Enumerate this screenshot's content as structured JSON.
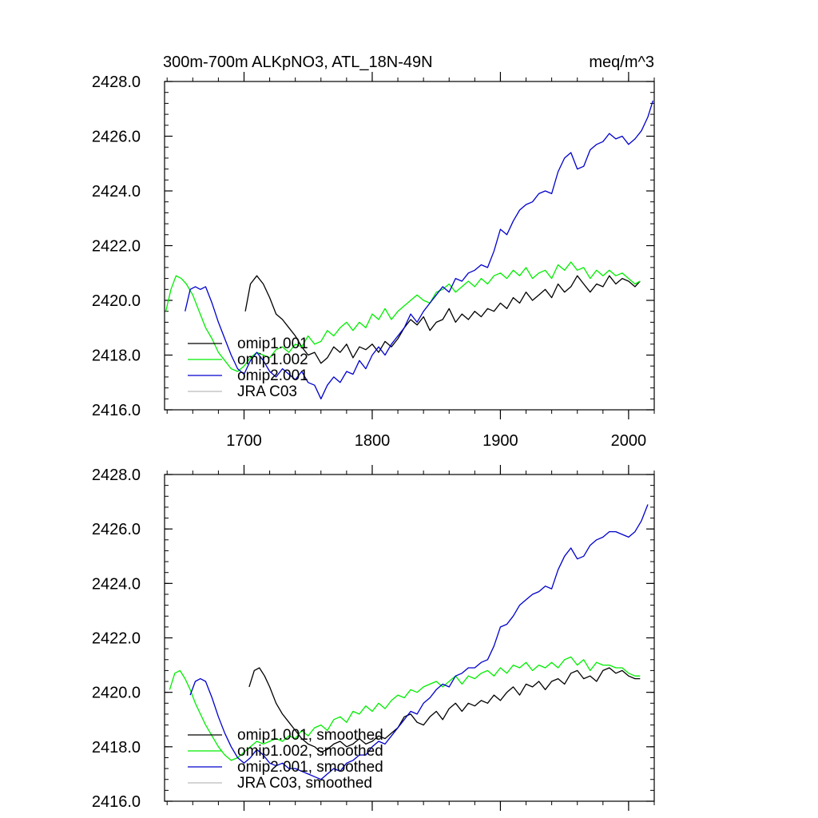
{
  "chart_data": [
    {
      "type": "line",
      "title_left": "300m-700m ALKpNO3, ATL_18N-49N",
      "title_right": "meq/m^3",
      "xlim": [
        1638,
        2020
      ],
      "ylim": [
        2416.0,
        2428.0
      ],
      "x_ticks": [
        1700,
        1800,
        1900,
        2000
      ],
      "x_tick_labels": [
        "1700",
        "1800",
        "1900",
        "2000"
      ],
      "y_ticks": [
        2416,
        2418,
        2420,
        2422,
        2424,
        2426,
        2428
      ],
      "y_tick_labels": [
        "2416.0",
        "2418.0",
        "2420.0",
        "2422.0",
        "2424.0",
        "2426.0",
        "2428.0"
      ],
      "legend_position": "lower-left",
      "series": [
        {
          "name": "omip1.001",
          "color": "#000000",
          "x": [
            1701,
            1705,
            1710,
            1715,
            1720,
            1725,
            1730,
            1735,
            1740,
            1745,
            1750,
            1755,
            1760,
            1765,
            1770,
            1775,
            1780,
            1785,
            1790,
            1795,
            1800,
            1805,
            1810,
            1815,
            1820,
            1825,
            1830,
            1835,
            1840,
            1845,
            1850,
            1855,
            1860,
            1865,
            1870,
            1875,
            1880,
            1885,
            1890,
            1895,
            1900,
            1905,
            1910,
            1915,
            1920,
            1925,
            1930,
            1935,
            1940,
            1945,
            1950,
            1955,
            1960,
            1965,
            1970,
            1975,
            1980,
            1985,
            1990,
            1995,
            2000,
            2005,
            2009
          ],
          "y": [
            2419.6,
            2420.6,
            2420.9,
            2420.6,
            2420.1,
            2419.5,
            2419.3,
            2419.0,
            2418.7,
            2418.3,
            2418.0,
            2418.1,
            2417.7,
            2417.9,
            2418.3,
            2418.1,
            2418.4,
            2417.9,
            2418.3,
            2418.2,
            2418.4,
            2418.1,
            2418.5,
            2418.3,
            2418.6,
            2419.0,
            2419.3,
            2419.1,
            2419.4,
            2418.9,
            2419.2,
            2419.3,
            2419.7,
            2419.2,
            2419.5,
            2419.3,
            2419.6,
            2419.4,
            2419.7,
            2419.6,
            2419.9,
            2419.7,
            2420.1,
            2419.9,
            2420.3,
            2420.0,
            2420.2,
            2420.4,
            2420.1,
            2420.6,
            2420.3,
            2420.5,
            2420.9,
            2420.6,
            2420.3,
            2420.6,
            2420.5,
            2420.9,
            2420.6,
            2420.8,
            2420.7,
            2420.5,
            2420.7
          ]
        },
        {
          "name": "omip1.002",
          "color": "#00ee00",
          "x": [
            1639,
            1643,
            1647,
            1651,
            1655,
            1660,
            1665,
            1670,
            1675,
            1680,
            1685,
            1690,
            1695,
            1700,
            1705,
            1710,
            1715,
            1720,
            1725,
            1730,
            1735,
            1740,
            1745,
            1750,
            1755,
            1760,
            1765,
            1770,
            1775,
            1780,
            1785,
            1790,
            1795,
            1800,
            1805,
            1810,
            1815,
            1820,
            1825,
            1830,
            1835,
            1840,
            1845,
            1850,
            1855,
            1860,
            1865,
            1870,
            1875,
            1880,
            1885,
            1890,
            1895,
            1900,
            1905,
            1910,
            1915,
            1920,
            1925,
            1930,
            1935,
            1940,
            1945,
            1950,
            1955,
            1960,
            1965,
            1970,
            1975,
            1980,
            1985,
            1990,
            1995,
            2000,
            2005,
            2009
          ],
          "y": [
            2419.6,
            2420.4,
            2420.9,
            2420.8,
            2420.6,
            2420.2,
            2419.6,
            2419.0,
            2418.6,
            2418.1,
            2417.8,
            2417.5,
            2417.4,
            2417.6,
            2417.9,
            2418.1,
            2418.0,
            2417.9,
            2418.2,
            2418.3,
            2418.1,
            2418.4,
            2418.3,
            2418.7,
            2418.4,
            2418.5,
            2418.9,
            2418.7,
            2419.0,
            2419.2,
            2418.9,
            2419.2,
            2419.0,
            2419.5,
            2419.3,
            2419.7,
            2419.3,
            2419.6,
            2419.8,
            2420.0,
            2420.2,
            2420.0,
            2419.9,
            2420.3,
            2420.4,
            2420.6,
            2420.3,
            2420.5,
            2420.7,
            2420.5,
            2420.8,
            2420.6,
            2420.9,
            2421.0,
            2420.8,
            2421.1,
            2420.9,
            2421.2,
            2420.8,
            2421.0,
            2421.1,
            2420.8,
            2421.3,
            2421.1,
            2421.4,
            2421.1,
            2421.2,
            2420.8,
            2421.1,
            2420.9,
            2421.1,
            2420.9,
            2421.0,
            2420.8,
            2420.6,
            2420.7
          ]
        },
        {
          "name": "omip2.001",
          "color": "#0000cc",
          "x": [
            1654,
            1658,
            1662,
            1666,
            1670,
            1675,
            1680,
            1685,
            1690,
            1695,
            1700,
            1705,
            1710,
            1715,
            1720,
            1725,
            1730,
            1735,
            1740,
            1745,
            1750,
            1755,
            1760,
            1765,
            1770,
            1775,
            1780,
            1785,
            1790,
            1795,
            1800,
            1805,
            1810,
            1815,
            1820,
            1825,
            1830,
            1835,
            1840,
            1845,
            1850,
            1855,
            1860,
            1865,
            1870,
            1875,
            1880,
            1885,
            1890,
            1895,
            1900,
            1905,
            1910,
            1915,
            1920,
            1925,
            1930,
            1935,
            1940,
            1945,
            1950,
            1955,
            1960,
            1965,
            1970,
            1975,
            1980,
            1985,
            1990,
            1995,
            2000,
            2005,
            2010,
            2015,
            2019
          ],
          "y": [
            2419.6,
            2420.4,
            2420.5,
            2420.4,
            2420.5,
            2419.9,
            2419.2,
            2418.6,
            2418.0,
            2417.5,
            2417.3,
            2417.8,
            2418.1,
            2417.8,
            2417.4,
            2417.2,
            2417.5,
            2417.3,
            2417.1,
            2417.4,
            2417.0,
            2416.9,
            2416.4,
            2416.9,
            2417.2,
            2417.0,
            2417.4,
            2417.3,
            2417.8,
            2417.5,
            2418.0,
            2418.3,
            2418.0,
            2418.4,
            2418.7,
            2419.0,
            2419.5,
            2419.2,
            2419.6,
            2419.9,
            2420.2,
            2420.5,
            2420.3,
            2420.8,
            2420.7,
            2421.0,
            2421.1,
            2421.3,
            2421.2,
            2421.8,
            2422.6,
            2422.4,
            2422.9,
            2423.3,
            2423.5,
            2423.6,
            2423.9,
            2424.0,
            2423.9,
            2424.7,
            2425.2,
            2425.4,
            2424.8,
            2424.9,
            2425.5,
            2425.7,
            2425.8,
            2426.1,
            2425.9,
            2426.0,
            2425.7,
            2425.9,
            2426.2,
            2426.7,
            2427.3
          ]
        },
        {
          "name": "JRA C03",
          "color": "#bbbbbb",
          "x": [],
          "y": []
        }
      ]
    },
    {
      "type": "line",
      "xlim": [
        1638,
        2020
      ],
      "ylim": [
        2416.0,
        2428.0
      ],
      "x_ticks": [
        1700,
        1800,
        1900,
        2000
      ],
      "y_ticks": [
        2416,
        2418,
        2420,
        2422,
        2424,
        2426,
        2428
      ],
      "y_tick_labels": [
        "2416.0",
        "2418.0",
        "2420.0",
        "2422.0",
        "2424.0",
        "2426.0",
        "2428.0"
      ],
      "legend_position": "lower-left",
      "series": [
        {
          "name": "omip1.001, smoothed",
          "color": "#000000",
          "x": [
            1704,
            1708,
            1712,
            1716,
            1720,
            1725,
            1730,
            1735,
            1740,
            1745,
            1750,
            1755,
            1760,
            1765,
            1770,
            1775,
            1780,
            1785,
            1790,
            1795,
            1800,
            1805,
            1810,
            1815,
            1820,
            1825,
            1830,
            1835,
            1840,
            1845,
            1850,
            1855,
            1860,
            1865,
            1870,
            1875,
            1880,
            1885,
            1890,
            1895,
            1900,
            1905,
            1910,
            1915,
            1920,
            1925,
            1930,
            1935,
            1940,
            1945,
            1950,
            1955,
            1960,
            1965,
            1970,
            1975,
            1980,
            1985,
            1990,
            1995,
            2000,
            2005,
            2009
          ],
          "y": [
            2420.2,
            2420.8,
            2420.9,
            2420.6,
            2420.2,
            2419.6,
            2419.2,
            2418.9,
            2418.6,
            2418.3,
            2418.1,
            2418.0,
            2417.8,
            2417.9,
            2418.1,
            2418.2,
            2418.0,
            2418.1,
            2418.3,
            2418.1,
            2418.2,
            2418.4,
            2418.3,
            2418.5,
            2418.7,
            2419.1,
            2419.2,
            2418.9,
            2418.8,
            2419.1,
            2419.3,
            2419.0,
            2419.4,
            2419.6,
            2419.3,
            2419.6,
            2419.5,
            2419.7,
            2419.6,
            2419.9,
            2419.7,
            2420.0,
            2420.2,
            2419.9,
            2420.3,
            2420.2,
            2420.4,
            2420.1,
            2420.4,
            2420.5,
            2420.3,
            2420.7,
            2420.8,
            2420.5,
            2420.6,
            2420.4,
            2420.8,
            2420.9,
            2420.7,
            2420.8,
            2420.6,
            2420.5,
            2420.5
          ]
        },
        {
          "name": "omip1.002, smoothed",
          "color": "#00ee00",
          "x": [
            1642,
            1646,
            1650,
            1654,
            1658,
            1662,
            1666,
            1670,
            1675,
            1680,
            1685,
            1690,
            1695,
            1700,
            1705,
            1710,
            1715,
            1720,
            1725,
            1730,
            1735,
            1740,
            1745,
            1750,
            1755,
            1760,
            1765,
            1770,
            1775,
            1780,
            1785,
            1790,
            1795,
            1800,
            1805,
            1810,
            1815,
            1820,
            1825,
            1830,
            1835,
            1840,
            1845,
            1850,
            1855,
            1860,
            1865,
            1870,
            1875,
            1880,
            1885,
            1890,
            1895,
            1900,
            1905,
            1910,
            1915,
            1920,
            1925,
            1930,
            1935,
            1940,
            1945,
            1950,
            1955,
            1960,
            1965,
            1970,
            1975,
            1980,
            1985,
            1990,
            1995,
            2000,
            2005,
            2009
          ],
          "y": [
            2420.1,
            2420.7,
            2420.8,
            2420.5,
            2420.1,
            2419.6,
            2419.2,
            2418.8,
            2418.4,
            2418.0,
            2417.7,
            2417.5,
            2417.6,
            2417.8,
            2418.0,
            2418.2,
            2418.1,
            2418.2,
            2418.3,
            2418.2,
            2418.4,
            2418.3,
            2418.6,
            2418.4,
            2418.7,
            2418.8,
            2418.6,
            2419.0,
            2419.1,
            2418.9,
            2419.3,
            2419.2,
            2419.5,
            2419.3,
            2419.6,
            2419.4,
            2419.7,
            2419.9,
            2419.8,
            2420.1,
            2420.0,
            2420.2,
            2420.3,
            2420.4,
            2420.2,
            2420.4,
            2420.6,
            2420.3,
            2420.6,
            2420.5,
            2420.7,
            2420.8,
            2420.6,
            2420.9,
            2420.7,
            2421.0,
            2420.9,
            2421.1,
            2420.8,
            2421.0,
            2420.9,
            2421.1,
            2420.9,
            2421.2,
            2421.3,
            2421.0,
            2421.2,
            2420.8,
            2421.1,
            2421.0,
            2421.0,
            2420.9,
            2420.9,
            2420.7,
            2420.6,
            2420.6
          ]
        },
        {
          "name": "omip2.001, smoothed",
          "color": "#0000cc",
          "x": [
            1658,
            1662,
            1666,
            1670,
            1675,
            1680,
            1685,
            1690,
            1695,
            1700,
            1705,
            1710,
            1715,
            1720,
            1725,
            1730,
            1735,
            1740,
            1745,
            1750,
            1755,
            1760,
            1765,
            1770,
            1775,
            1780,
            1785,
            1790,
            1795,
            1800,
            1805,
            1810,
            1815,
            1820,
            1825,
            1830,
            1835,
            1840,
            1845,
            1850,
            1855,
            1860,
            1865,
            1870,
            1875,
            1880,
            1885,
            1890,
            1895,
            1900,
            1905,
            1910,
            1915,
            1920,
            1925,
            1930,
            1935,
            1940,
            1945,
            1950,
            1955,
            1960,
            1965,
            1970,
            1975,
            1980,
            1985,
            1990,
            1995,
            2000,
            2005,
            2010,
            2015
          ],
          "y": [
            2419.9,
            2420.4,
            2420.5,
            2420.4,
            2419.8,
            2419.1,
            2418.5,
            2418.0,
            2417.6,
            2417.4,
            2417.6,
            2417.9,
            2417.7,
            2417.4,
            2417.3,
            2417.4,
            2417.2,
            2417.2,
            2417.1,
            2417.0,
            2416.9,
            2416.8,
            2417.0,
            2417.2,
            2417.1,
            2417.4,
            2417.5,
            2417.7,
            2417.7,
            2418.0,
            2418.2,
            2418.1,
            2418.4,
            2418.7,
            2419.0,
            2419.3,
            2419.2,
            2419.6,
            2419.8,
            2420.1,
            2420.3,
            2420.2,
            2420.6,
            2420.7,
            2420.9,
            2420.9,
            2421.1,
            2421.2,
            2421.7,
            2422.4,
            2422.5,
            2422.8,
            2423.2,
            2423.4,
            2423.6,
            2423.7,
            2423.9,
            2423.8,
            2424.5,
            2425.0,
            2425.3,
            2424.9,
            2425.0,
            2425.4,
            2425.6,
            2425.7,
            2425.9,
            2425.9,
            2425.8,
            2425.7,
            2425.9,
            2426.3,
            2426.9
          ]
        },
        {
          "name": "JRA C03, smoothed",
          "color": "#bbbbbb",
          "x": [],
          "y": []
        }
      ]
    }
  ]
}
